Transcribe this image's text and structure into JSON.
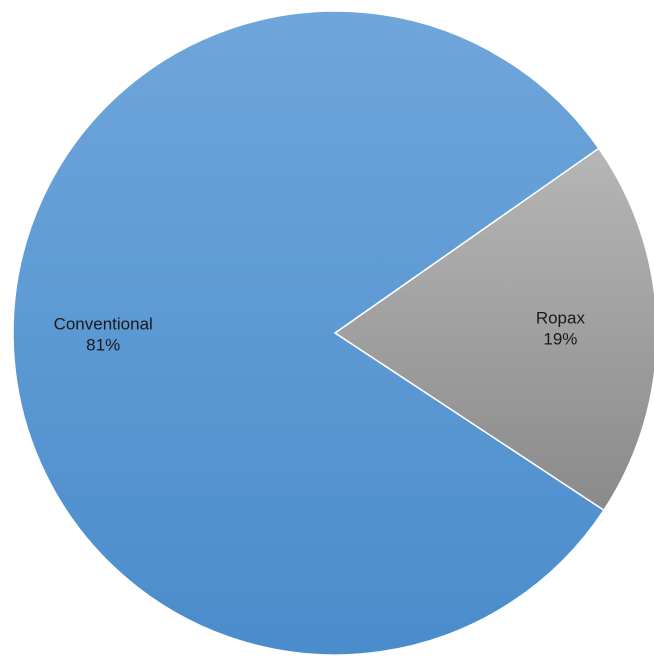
{
  "chart_data": {
    "type": "pie",
    "slices": [
      {
        "label": "Ropax",
        "value": 19,
        "value_label": "19%",
        "color_light": "#b6b6b6",
        "color_dark": "#8a8a8a"
      },
      {
        "label": "Conventional",
        "value": 81,
        "value_label": "81%",
        "color_light": "#6fa6da",
        "color_dark": "#4a8ccc"
      }
    ],
    "legend": "none",
    "data_labels": "category-and-percent inside slices"
  }
}
